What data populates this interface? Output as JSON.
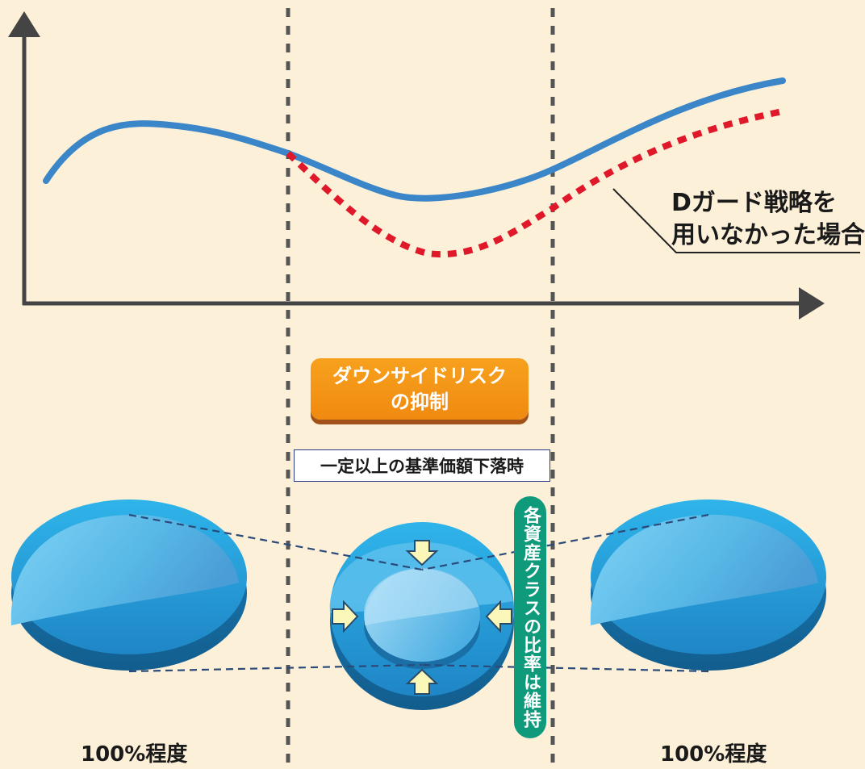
{
  "callout": {
    "line1": "Dガード戦略を",
    "line2": "用いなかった場合"
  },
  "badge": {
    "line1": "ダウンサイドリスク",
    "line2": "の抑制"
  },
  "threshold_label": "一定以上の基準価額下落時",
  "ratio_label": "各資産クラスの比率は維持",
  "left_pie_label": "100%程度",
  "right_pie_label": "100%程度",
  "colors": {
    "background": "#fdf0d8",
    "strategy_line": "#3a86c8",
    "no_strategy_line": "#e0192a",
    "badge": "#f39a12",
    "ratio_pill": "#109a7c",
    "sphere": "#2aa8e0",
    "axis": "#444444"
  }
}
